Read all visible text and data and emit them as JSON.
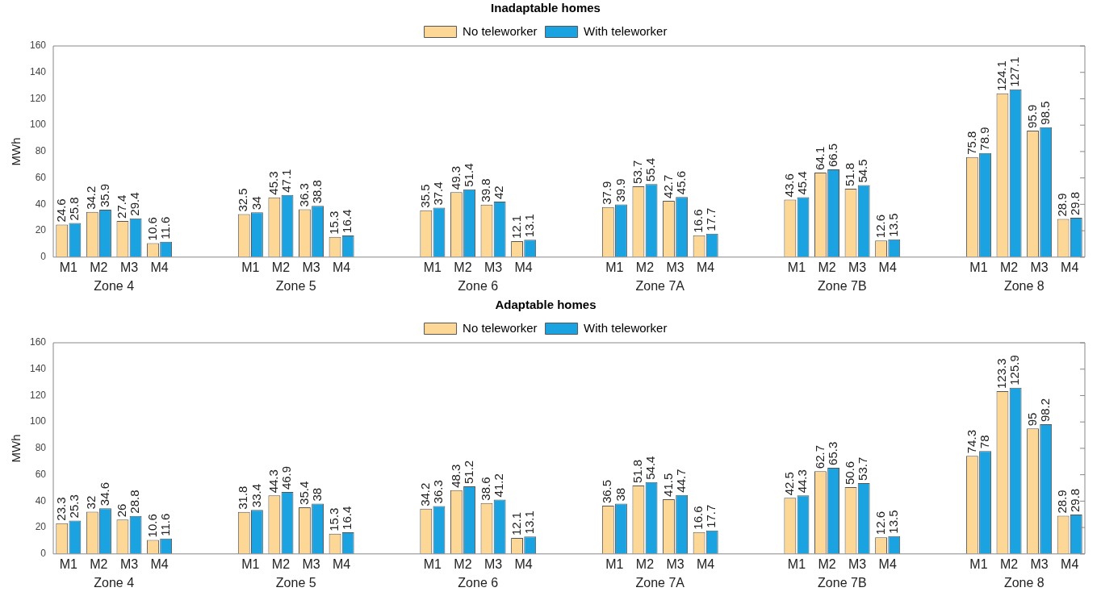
{
  "chart_data": [
    {
      "type": "bar",
      "title": "Inadaptable homes",
      "ylabel": "MWh",
      "categories": [
        "M1",
        "M2",
        "M3",
        "M4",
        null,
        null,
        "M1",
        "M2",
        "M3",
        "M4",
        null,
        null,
        "M1",
        "M2",
        "M3",
        "M4",
        null,
        null,
        "M1",
        "M2",
        "M3",
        "M4",
        null,
        null,
        "M1",
        "M2",
        "M3",
        "M4",
        null,
        null,
        "M1",
        "M2",
        "M3",
        "M4"
      ],
      "series": [
        {
          "name": "No teleworker",
          "color": "#fcd795",
          "values": [
            24.6,
            34.2,
            27.4,
            10.6,
            null,
            null,
            32.5,
            45.3,
            36.3,
            15.3,
            null,
            null,
            35.5,
            49.3,
            39.8,
            12.1,
            null,
            null,
            37.9,
            53.7,
            42.7,
            16.6,
            null,
            null,
            43.6,
            64.1,
            51.8,
            12.6,
            null,
            null,
            75.8,
            124.1,
            95.9,
            28.9
          ]
        },
        {
          "name": "With teleworker",
          "color": "#1aa3e0",
          "values": [
            25.8,
            35.9,
            29.4,
            11.6,
            null,
            null,
            34,
            47.1,
            38.8,
            16.4,
            null,
            null,
            37.4,
            51.4,
            42,
            13.1,
            null,
            null,
            39.9,
            55.4,
            45.6,
            17.7,
            null,
            null,
            45.4,
            66.5,
            54.5,
            13.5,
            null,
            null,
            78.9,
            127.1,
            98.5,
            29.8
          ]
        }
      ],
      "ylim": [
        0,
        160
      ],
      "yticks": [
        0,
        20,
        40,
        60,
        80,
        100,
        120,
        140,
        160
      ],
      "grid": false,
      "legend": "top",
      "data_labels": true,
      "annotations": [
        "Zone 4",
        "Zone 5",
        "Zone 6",
        "Zone 7A",
        "Zone 7B",
        "Zone 8"
      ]
    },
    {
      "type": "bar",
      "title": "Adaptable homes",
      "ylabel": "MWh",
      "categories": [
        "M1",
        "M2",
        "M3",
        "M4",
        null,
        null,
        "M1",
        "M2",
        "M3",
        "M4",
        null,
        null,
        "M1",
        "M2",
        "M3",
        "M4",
        null,
        null,
        "M1",
        "M2",
        "M3",
        "M4",
        null,
        null,
        "M1",
        "M2",
        "M3",
        "M4",
        null,
        null,
        "M1",
        "M2",
        "M3",
        "M4"
      ],
      "series": [
        {
          "name": "No teleworker",
          "color": "#fcd795",
          "values": [
            23.3,
            32,
            26,
            10.6,
            null,
            null,
            31.8,
            44.3,
            35.4,
            15.3,
            null,
            null,
            34.2,
            48.3,
            38.6,
            12.1,
            null,
            null,
            36.5,
            51.8,
            41.5,
            16.6,
            null,
            null,
            42.5,
            62.7,
            50.6,
            12.6,
            null,
            null,
            74.3,
            123.3,
            95,
            28.9
          ]
        },
        {
          "name": "With teleworker",
          "color": "#1aa3e0",
          "values": [
            25.3,
            34.6,
            28.8,
            11.6,
            null,
            null,
            33.4,
            46.9,
            38,
            16.4,
            null,
            null,
            36.3,
            51.2,
            41.2,
            13.1,
            null,
            null,
            38,
            54.4,
            44.7,
            17.7,
            null,
            null,
            44.3,
            65.3,
            53.7,
            13.5,
            null,
            null,
            78,
            125.9,
            98.2,
            29.8
          ]
        }
      ],
      "ylim": [
        0,
        160
      ],
      "yticks": [
        0,
        20,
        40,
        60,
        80,
        100,
        120,
        140,
        160
      ],
      "grid": false,
      "legend": "top",
      "data_labels": true,
      "annotations": [
        "Zone 4",
        "Zone 5",
        "Zone 6",
        "Zone 7A",
        "Zone 7B",
        "Zone 8"
      ]
    }
  ]
}
